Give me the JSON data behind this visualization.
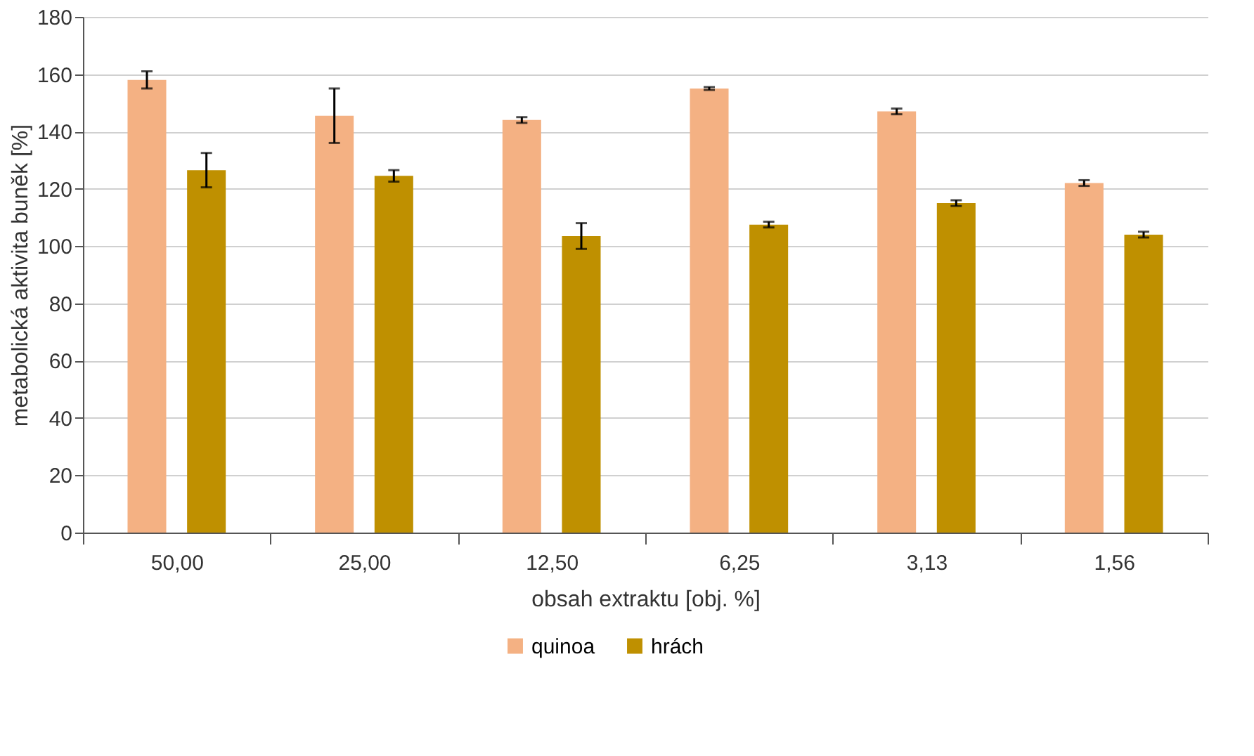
{
  "chart_data": {
    "type": "bar",
    "xlabel": "obsah extraktu [obj. %]",
    "ylabel": "metabolická aktivita buněk [%]",
    "categories": [
      "50,00",
      "25,00",
      "12,50",
      "6,25",
      "3,13",
      "1,56"
    ],
    "series": [
      {
        "name": "quinoa",
        "color": "#f4b183",
        "values": [
          158,
          145.5,
          144,
          155,
          147,
          122
        ],
        "errors": [
          3,
          9.5,
          1,
          0.5,
          1,
          1
        ]
      },
      {
        "name": "hrách",
        "color": "#bf9000",
        "values": [
          126.5,
          124.5,
          103.5,
          107.5,
          115,
          104
        ],
        "errors": [
          6,
          2,
          4.5,
          1,
          1,
          1
        ]
      }
    ],
    "ylim": [
      0,
      180
    ],
    "yticks": [
      0,
      20,
      40,
      60,
      80,
      100,
      120,
      140,
      160,
      180
    ],
    "grid": "y",
    "legend": "bottom"
  }
}
